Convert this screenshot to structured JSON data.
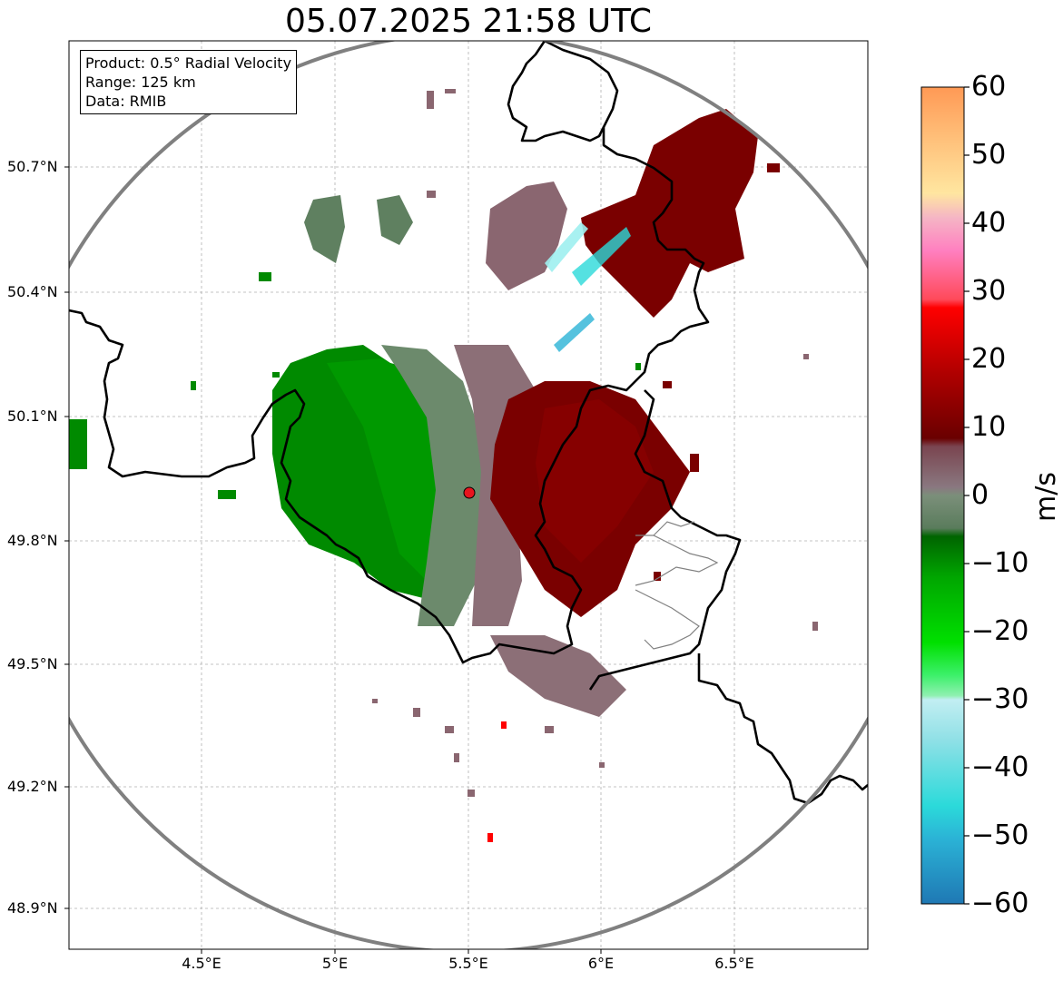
{
  "title": "05.07.2025 21:58 UTC",
  "info": {
    "product": "Product: 0.5° Radial Velocity",
    "range": "Range: 125 km",
    "source": "Data: RMIB"
  },
  "lat_labels": [
    "50.7°N",
    "50.4°N",
    "50.1°N",
    "49.8°N",
    "49.5°N",
    "49.2°N",
    "48.9°N"
  ],
  "lon_labels": [
    "4.5°E",
    "5°E",
    "5.5°E",
    "6°E",
    "6.5°E"
  ],
  "colorbar": {
    "unit": "m/s",
    "ticks": [
      "60",
      "50",
      "40",
      "30",
      "20",
      "10",
      "0",
      "−10",
      "−20",
      "−30",
      "−40",
      "−50",
      "−60"
    ],
    "range": [
      -60,
      60
    ]
  },
  "colors": {
    "approaching_strong": "#1f78b4",
    "approaching_mid": "#2bdada",
    "approaching": "#00aa00",
    "near_zero_neg": "#5f8060",
    "near_zero_pos": "#8a6670",
    "receding": "#7a0000",
    "receding_strong": "#ff0000",
    "receding_max": "#ff9955",
    "range_ring": "#808080",
    "radar_site": "#e8141e"
  }
}
